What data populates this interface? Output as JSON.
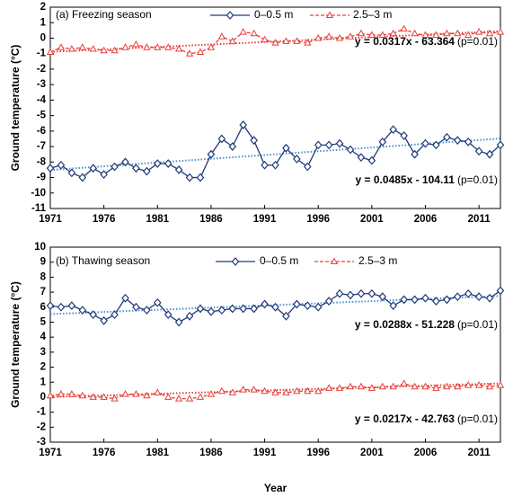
{
  "chart_data": [
    {
      "type": "line",
      "title": "(a) Freezing season",
      "ylabel": "Ground temperature (°C)",
      "x": [
        1971,
        1972,
        1973,
        1974,
        1975,
        1976,
        1977,
        1978,
        1979,
        1980,
        1981,
        1982,
        1983,
        1984,
        1985,
        1986,
        1987,
        1988,
        1989,
        1990,
        1991,
        1992,
        1993,
        1994,
        1995,
        1996,
        1997,
        1998,
        1999,
        2000,
        2001,
        2002,
        2003,
        2004,
        2005,
        2006,
        2007,
        2008,
        2009,
        2010,
        2011,
        2012,
        2013
      ],
      "xlim": [
        1971,
        2013
      ],
      "xticks": [
        1971,
        1976,
        1981,
        1986,
        1991,
        1996,
        2001,
        2006,
        2011
      ],
      "ylim": [
        -11,
        2
      ],
      "yticks": [
        2,
        1,
        0,
        -1,
        -2,
        -3,
        -4,
        -5,
        -6,
        -7,
        -8,
        -9,
        -10,
        -11
      ],
      "series": [
        {
          "name": "0–0.5 m",
          "color": "#1f3a7a",
          "marker": "diamond",
          "dash": false,
          "values": [
            -8.4,
            -8.2,
            -8.7,
            -9.0,
            -8.4,
            -8.8,
            -8.3,
            -8.0,
            -8.4,
            -8.6,
            -8.1,
            -8.1,
            -8.5,
            -9.0,
            -9.0,
            -7.5,
            -6.5,
            -7.0,
            -5.6,
            -6.6,
            -8.2,
            -8.2,
            -7.1,
            -7.8,
            -8.3,
            -6.9,
            -6.9,
            -6.8,
            -7.2,
            -7.7,
            -7.9,
            -6.7,
            -5.9,
            -6.3,
            -7.5,
            -6.8,
            -6.9,
            -6.4,
            -6.6,
            -6.7,
            -7.3,
            -7.5,
            -6.9
          ]
        },
        {
          "name": "2.5–3 m",
          "color": "#e8403a",
          "marker": "triangle",
          "dash": true,
          "values": [
            -0.9,
            -0.6,
            -0.7,
            -0.6,
            -0.7,
            -0.8,
            -0.8,
            -0.6,
            -0.4,
            -0.6,
            -0.6,
            -0.6,
            -0.7,
            -1.0,
            -0.9,
            -0.6,
            0.1,
            -0.2,
            0.4,
            0.3,
            -0.1,
            -0.3,
            -0.2,
            -0.2,
            -0.3,
            0.0,
            0.1,
            0.0,
            0.1,
            0.3,
            0.2,
            0.2,
            0.3,
            0.6,
            0.3,
            0.2,
            0.2,
            0.3,
            0.3,
            0.2,
            0.4,
            0.3,
            0.4
          ]
        }
      ],
      "trendlines": [
        {
          "slope": 0.0317,
          "intercept": -63.364,
          "color": "#e8403a",
          "label": "y = 0.0317x - 63.364",
          "p_label": "(p=0.01)"
        },
        {
          "slope": 0.0485,
          "intercept": -104.11,
          "color": "#4a90c8",
          "label": "y = 0.0485x - 104.11",
          "p_label": "(p=0.01)"
        }
      ]
    },
    {
      "type": "line",
      "title": "(b) Thawing season",
      "ylabel": "Ground temperature (°C)",
      "xlabel": "Year",
      "x": [
        1971,
        1972,
        1973,
        1974,
        1975,
        1976,
        1977,
        1978,
        1979,
        1980,
        1981,
        1982,
        1983,
        1984,
        1985,
        1986,
        1987,
        1988,
        1989,
        1990,
        1991,
        1992,
        1993,
        1994,
        1995,
        1996,
        1997,
        1998,
        1999,
        2000,
        2001,
        2002,
        2003,
        2004,
        2005,
        2006,
        2007,
        2008,
        2009,
        2010,
        2011,
        2012,
        2013
      ],
      "xlim": [
        1971,
        2013
      ],
      "xticks": [
        1971,
        1976,
        1981,
        1986,
        1991,
        1996,
        2001,
        2006,
        2011
      ],
      "ylim": [
        -3,
        10
      ],
      "yticks": [
        10,
        9,
        8,
        7,
        6,
        5,
        4,
        3,
        2,
        1,
        0,
        -1,
        -2,
        -3
      ],
      "series": [
        {
          "name": "0–0.5 m",
          "color": "#1f3a7a",
          "marker": "diamond",
          "dash": false,
          "values": [
            6.1,
            6.0,
            6.1,
            5.8,
            5.5,
            5.1,
            5.5,
            6.6,
            6.0,
            5.8,
            6.3,
            5.5,
            5.0,
            5.4,
            5.9,
            5.7,
            5.8,
            5.9,
            5.9,
            5.9,
            6.2,
            6.0,
            5.4,
            6.2,
            6.1,
            6.0,
            6.4,
            6.9,
            6.8,
            6.9,
            6.9,
            6.7,
            6.1,
            6.5,
            6.5,
            6.6,
            6.4,
            6.5,
            6.7,
            6.9,
            6.7,
            6.6,
            7.1
          ]
        },
        {
          "name": "2.5–3 m",
          "color": "#e8403a",
          "marker": "triangle",
          "dash": true,
          "values": [
            0.1,
            0.2,
            0.2,
            0.1,
            0.0,
            0.0,
            -0.1,
            0.2,
            0.2,
            0.1,
            0.3,
            0.0,
            -0.1,
            -0.1,
            0.0,
            0.2,
            0.4,
            0.3,
            0.5,
            0.5,
            0.4,
            0.3,
            0.3,
            0.4,
            0.4,
            0.4,
            0.6,
            0.6,
            0.7,
            0.7,
            0.6,
            0.7,
            0.7,
            0.9,
            0.7,
            0.7,
            0.6,
            0.7,
            0.7,
            0.8,
            0.8,
            0.7,
            0.8
          ]
        }
      ],
      "trendlines": [
        {
          "slope": 0.0288,
          "intercept": -51.228,
          "color": "#4a90c8",
          "label": "y = 0.0288x - 51.228",
          "p_label": "(p=0.01)"
        },
        {
          "slope": 0.0217,
          "intercept": -42.763,
          "color": "#e8403a",
          "label": "y = 0.0217x - 42.763",
          "p_label": "(p=0.01)"
        }
      ]
    }
  ]
}
